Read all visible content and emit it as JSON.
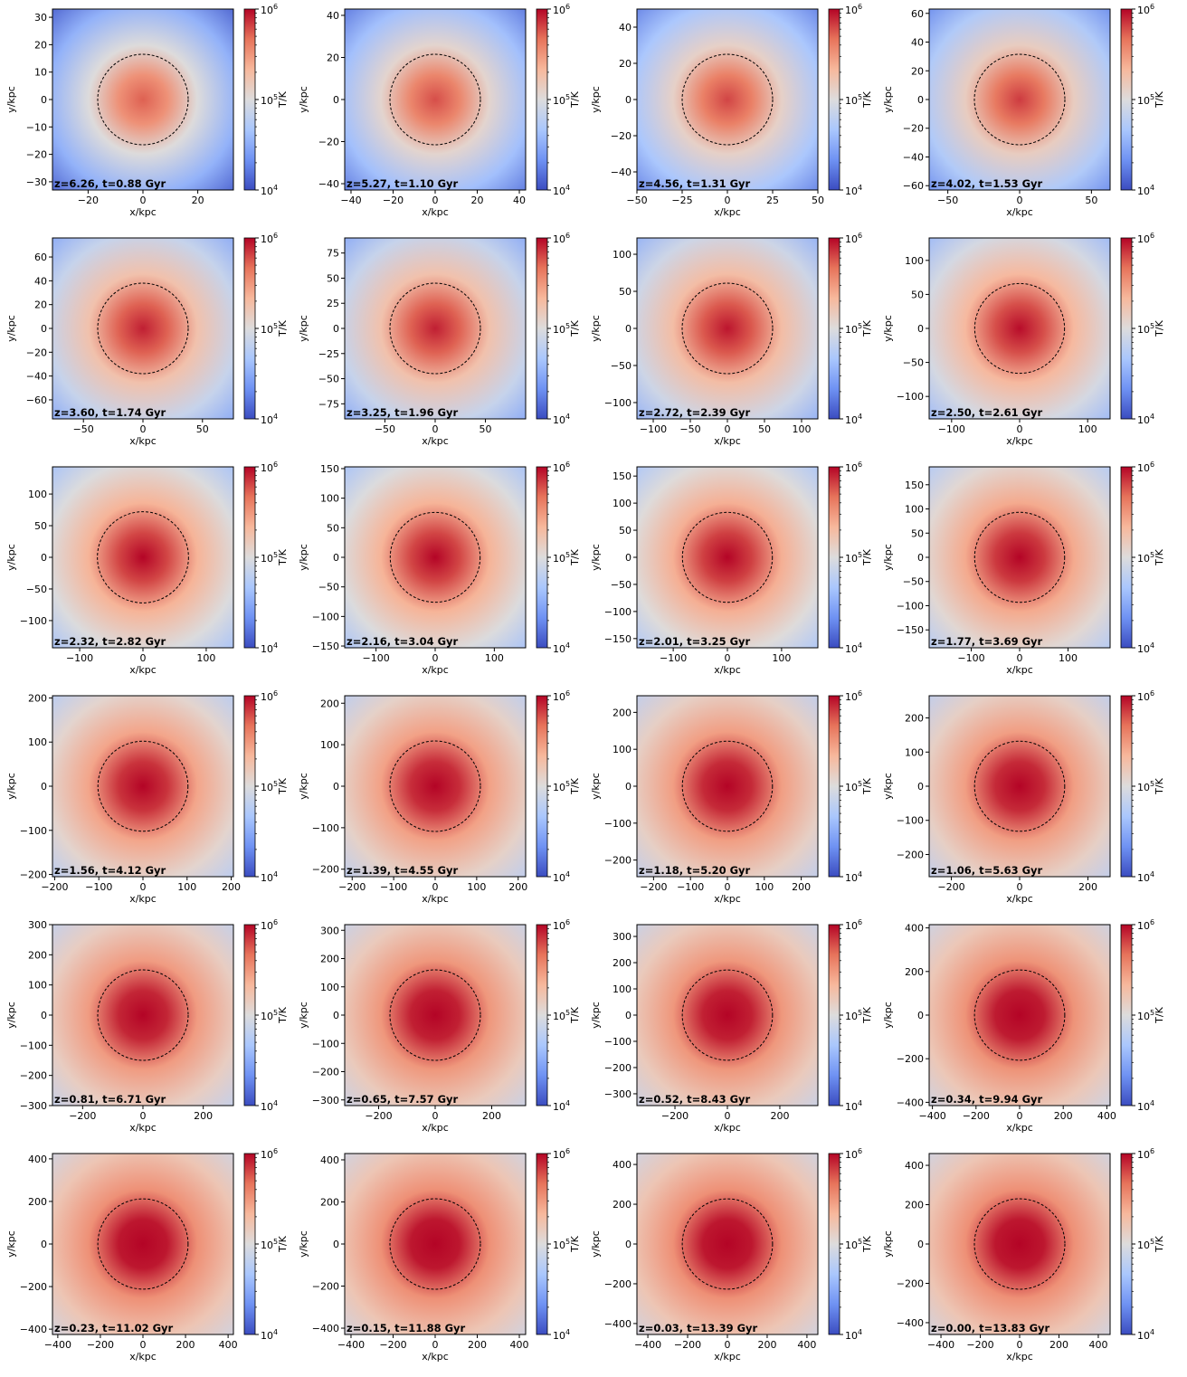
{
  "figure": {
    "rows": 6,
    "cols": 4,
    "colormap": "coolwarm",
    "colormap_stops": [
      "#3b4cc0",
      "#6f92f3",
      "#aac7fd",
      "#dddcdc",
      "#f7b89c",
      "#e7745b",
      "#b40426"
    ],
    "circle_style": "dashed-black"
  },
  "colorbar": {
    "label": "T/K",
    "ticks": [
      {
        "base": "10",
        "exp": "6"
      },
      {
        "base": "10",
        "exp": "5"
      },
      {
        "base": "10",
        "exp": "4"
      }
    ],
    "range": [
      10000,
      1000000
    ],
    "scale": "log"
  },
  "axes": {
    "xlabel": "x/kpc",
    "ylabel": "y/kpc"
  },
  "chart_data": [
    {
      "type": "heatmap",
      "annotation": "z=6.26, t=0.88 Gyr",
      "extent": [
        -33,
        33
      ],
      "xticks": [
        "-20",
        "0",
        "20"
      ],
      "xtick_values": [
        -20,
        0,
        20
      ],
      "yticks": [
        "30",
        "20",
        "10",
        "0",
        "-10",
        "-20",
        "-30"
      ],
      "ytick_values": [
        30,
        20,
        10,
        0,
        -10,
        -20,
        -30
      ],
      "circle_radius": 16.5,
      "warmth": 0.15
    },
    {
      "type": "heatmap",
      "annotation": "z=5.27, t=1.10 Gyr",
      "extent": [
        -43,
        43
      ],
      "xticks": [
        "-40",
        "-20",
        "0",
        "20",
        "40"
      ],
      "xtick_values": [
        -40,
        -20,
        0,
        20,
        40
      ],
      "yticks": [
        "40",
        "20",
        "0",
        "-20",
        "-40"
      ],
      "ytick_values": [
        40,
        20,
        0,
        -20,
        -40
      ],
      "circle_radius": 21.5,
      "warmth": 0.25
    },
    {
      "type": "heatmap",
      "annotation": "z=4.56, t=1.31 Gyr",
      "extent": [
        -50,
        50
      ],
      "xticks": [
        "-50",
        "-25",
        "0",
        "25",
        "50"
      ],
      "xtick_values": [
        -50,
        -25,
        0,
        25,
        50
      ],
      "yticks": [
        "40",
        "20",
        "0",
        "-20",
        "-40"
      ],
      "ytick_values": [
        40,
        20,
        0,
        -20,
        -40
      ],
      "circle_radius": 25,
      "warmth": 0.3
    },
    {
      "type": "heatmap",
      "annotation": "z=4.02, t=1.53 Gyr",
      "extent": [
        -63,
        63
      ],
      "xticks": [
        "-50",
        "0",
        "50"
      ],
      "xtick_values": [
        -50,
        0,
        50
      ],
      "yticks": [
        "60",
        "40",
        "20",
        "0",
        "-20",
        "-40",
        "-60"
      ],
      "ytick_values": [
        60,
        40,
        20,
        0,
        -20,
        -40,
        -60
      ],
      "circle_radius": 31.5,
      "warmth": 0.35
    },
    {
      "type": "heatmap",
      "annotation": "z=3.60, t=1.74 Gyr",
      "extent": [
        -76,
        76
      ],
      "xticks": [
        "-50",
        "0",
        "50"
      ],
      "xtick_values": [
        -50,
        0,
        50
      ],
      "yticks": [
        "60",
        "40",
        "20",
        "0",
        "-20",
        "-40",
        "-60"
      ],
      "ytick_values": [
        60,
        40,
        20,
        0,
        -20,
        -40,
        -60
      ],
      "circle_radius": 38,
      "warmth": 0.5
    },
    {
      "type": "heatmap",
      "annotation": "z=3.25, t=1.96 Gyr",
      "extent": [
        -90,
        90
      ],
      "xticks": [
        "-50",
        "0",
        "50"
      ],
      "xtick_values": [
        -50,
        0,
        50
      ],
      "yticks": [
        "75",
        "50",
        "25",
        "0",
        "-25",
        "-50",
        "-75"
      ],
      "ytick_values": [
        75,
        50,
        25,
        0,
        -25,
        -50,
        -75
      ],
      "circle_radius": 45,
      "warmth": 0.5
    },
    {
      "type": "heatmap",
      "annotation": "z=2.72, t=2.39 Gyr",
      "extent": [
        -122,
        122
      ],
      "xticks": [
        "-100",
        "-50",
        "0",
        "50",
        "100"
      ],
      "xtick_values": [
        -100,
        -50,
        0,
        50,
        100
      ],
      "yticks": [
        "100",
        "50",
        "0",
        "-50",
        "-100"
      ],
      "ytick_values": [
        100,
        50,
        0,
        -50,
        -100
      ],
      "circle_radius": 61,
      "warmth": 0.55
    },
    {
      "type": "heatmap",
      "annotation": "z=2.50, t=2.61 Gyr",
      "extent": [
        -133,
        133
      ],
      "xticks": [
        "-100",
        "0",
        "100"
      ],
      "xtick_values": [
        -100,
        0,
        100
      ],
      "yticks": [
        "100",
        "50",
        "0",
        "-50",
        "-100"
      ],
      "ytick_values": [
        100,
        50,
        0,
        -50,
        -100
      ],
      "circle_radius": 66,
      "warmth": 0.6
    },
    {
      "type": "heatmap",
      "annotation": "z=2.32, t=2.82 Gyr",
      "extent": [
        -143,
        143
      ],
      "xticks": [
        "-100",
        "0",
        "100"
      ],
      "xtick_values": [
        -100,
        0,
        100
      ],
      "yticks": [
        "100",
        "50",
        "0",
        "-50",
        "-100"
      ],
      "ytick_values": [
        100,
        50,
        0,
        -50,
        -100
      ],
      "circle_radius": 72,
      "warmth": 0.65
    },
    {
      "type": "heatmap",
      "annotation": "z=2.16, t=3.04 Gyr",
      "extent": [
        -153,
        153
      ],
      "xticks": [
        "-100",
        "0",
        "100"
      ],
      "xtick_values": [
        -100,
        0,
        100
      ],
      "yticks": [
        "150",
        "100",
        "50",
        "0",
        "-50",
        "-100",
        "-150"
      ],
      "ytick_values": [
        150,
        100,
        50,
        0,
        -50,
        -100,
        -150
      ],
      "circle_radius": 76,
      "warmth": 0.65
    },
    {
      "type": "heatmap",
      "annotation": "z=2.01, t=3.25 Gyr",
      "extent": [
        -167,
        167
      ],
      "xticks": [
        "-100",
        "0",
        "100"
      ],
      "xtick_values": [
        -100,
        0,
        100
      ],
      "yticks": [
        "150",
        "100",
        "50",
        "0",
        "-50",
        "-100",
        "-150"
      ],
      "ytick_values": [
        150,
        100,
        50,
        0,
        -50,
        -100,
        -150
      ],
      "circle_radius": 83,
      "warmth": 0.68
    },
    {
      "type": "heatmap",
      "annotation": "z=1.77, t=3.69 Gyr",
      "extent": [
        -187,
        187
      ],
      "xticks": [
        "-100",
        "0",
        "100"
      ],
      "xtick_values": [
        -100,
        0,
        100
      ],
      "yticks": [
        "150",
        "100",
        "50",
        "0",
        "-50",
        "-100",
        "-150"
      ],
      "ytick_values": [
        150,
        100,
        50,
        0,
        -50,
        -100,
        -150
      ],
      "circle_radius": 93,
      "warmth": 0.72
    },
    {
      "type": "heatmap",
      "annotation": "z=1.56, t=4.12 Gyr",
      "extent": [
        -205,
        205
      ],
      "xticks": [
        "-200",
        "-100",
        "0",
        "100",
        "200"
      ],
      "xtick_values": [
        -200,
        -100,
        0,
        100,
        200
      ],
      "yticks": [
        "200",
        "100",
        "0",
        "-100",
        "-200"
      ],
      "ytick_values": [
        200,
        100,
        0,
        -100,
        -200
      ],
      "circle_radius": 102,
      "warmth": 0.75
    },
    {
      "type": "heatmap",
      "annotation": "z=1.39, t=4.55 Gyr",
      "extent": [
        -218,
        218
      ],
      "xticks": [
        "-200",
        "-100",
        "0",
        "100",
        "200"
      ],
      "xtick_values": [
        -200,
        -100,
        0,
        100,
        200
      ],
      "yticks": [
        "200",
        "100",
        "0",
        "-100",
        "-200"
      ],
      "ytick_values": [
        200,
        100,
        0,
        -100,
        -200
      ],
      "circle_radius": 109,
      "warmth": 0.78
    },
    {
      "type": "heatmap",
      "annotation": "z=1.18, t=5.20 Gyr",
      "extent": [
        -245,
        245
      ],
      "xticks": [
        "-200",
        "-100",
        "0",
        "100",
        "200"
      ],
      "xtick_values": [
        -200,
        -100,
        0,
        100,
        200
      ],
      "yticks": [
        "200",
        "100",
        "0",
        "-100",
        "-200"
      ],
      "ytick_values": [
        200,
        100,
        0,
        -100,
        -200
      ],
      "circle_radius": 122,
      "warmth": 0.8
    },
    {
      "type": "heatmap",
      "annotation": "z=1.06, t=5.63 Gyr",
      "extent": [
        -265,
        265
      ],
      "xticks": [
        "-200",
        "0",
        "200"
      ],
      "xtick_values": [
        -200,
        0,
        200
      ],
      "yticks": [
        "200",
        "100",
        "0",
        "-100",
        "-200"
      ],
      "ytick_values": [
        200,
        100,
        0,
        -100,
        -200
      ],
      "circle_radius": 132,
      "warmth": 0.8
    },
    {
      "type": "heatmap",
      "annotation": "z=0.81, t=6.71 Gyr",
      "extent": [
        -300,
        300
      ],
      "xticks": [
        "-200",
        "0",
        "200"
      ],
      "xtick_values": [
        -200,
        0,
        200
      ],
      "yticks": [
        "300",
        "200",
        "100",
        "0",
        "-100",
        "-200",
        "-300"
      ],
      "ytick_values": [
        300,
        200,
        100,
        0,
        -100,
        -200,
        -300
      ],
      "circle_radius": 150,
      "warmth": 0.82
    },
    {
      "type": "heatmap",
      "annotation": "z=0.65, t=7.57 Gyr",
      "extent": [
        -320,
        320
      ],
      "xticks": [
        "-200",
        "0",
        "200"
      ],
      "xtick_values": [
        -200,
        0,
        200
      ],
      "yticks": [
        "300",
        "200",
        "100",
        "0",
        "-100",
        "-200",
        "-300"
      ],
      "ytick_values": [
        300,
        200,
        100,
        0,
        -100,
        -200,
        -300
      ],
      "circle_radius": 160,
      "warmth": 0.85
    },
    {
      "type": "heatmap",
      "annotation": "z=0.52, t=8.43 Gyr",
      "extent": [
        -345,
        345
      ],
      "xticks": [
        "-200",
        "0",
        "200"
      ],
      "xtick_values": [
        -200,
        0,
        200
      ],
      "yticks": [
        "300",
        "200",
        "100",
        "0",
        "-100",
        "-200",
        "-300"
      ],
      "ytick_values": [
        300,
        200,
        100,
        0,
        -100,
        -200,
        -300
      ],
      "circle_radius": 172,
      "warmth": 0.85
    },
    {
      "type": "heatmap",
      "annotation": "z=0.34, t=9.94 Gyr",
      "extent": [
        -415,
        415
      ],
      "xticks": [
        "-400",
        "-200",
        "0",
        "200",
        "400"
      ],
      "xtick_values": [
        -400,
        -200,
        0,
        200,
        400
      ],
      "yticks": [
        "400",
        "200",
        "0",
        "-200",
        "-400"
      ],
      "ytick_values": [
        400,
        200,
        0,
        -200,
        -400
      ],
      "circle_radius": 207,
      "warmth": 0.88
    },
    {
      "type": "heatmap",
      "annotation": "z=0.23, t=11.02 Gyr",
      "extent": [
        -425,
        425
      ],
      "xticks": [
        "-400",
        "-200",
        "0",
        "200",
        "400"
      ],
      "xtick_values": [
        -400,
        -200,
        0,
        200,
        400
      ],
      "yticks": [
        "400",
        "200",
        "0",
        "-200",
        "-400"
      ],
      "ytick_values": [
        400,
        200,
        0,
        -200,
        -400
      ],
      "circle_radius": 212,
      "warmth": 0.9
    },
    {
      "type": "heatmap",
      "annotation": "z=0.15, t=11.88 Gyr",
      "extent": [
        -430,
        430
      ],
      "xticks": [
        "-400",
        "-200",
        "0",
        "200",
        "400"
      ],
      "xtick_values": [
        -400,
        -200,
        0,
        200,
        400
      ],
      "yticks": [
        "400",
        "200",
        "0",
        "-200",
        "-400"
      ],
      "ytick_values": [
        400,
        200,
        0,
        -200,
        -400
      ],
      "circle_radius": 215,
      "warmth": 0.9
    },
    {
      "type": "heatmap",
      "annotation": "z=0.03, t=13.39 Gyr",
      "extent": [
        -455,
        455
      ],
      "xticks": [
        "-400",
        "-200",
        "0",
        "200",
        "400"
      ],
      "xtick_values": [
        -400,
        -200,
        0,
        200,
        400
      ],
      "yticks": [
        "400",
        "200",
        "0",
        "-200",
        "-400"
      ],
      "ytick_values": [
        400,
        200,
        0,
        -200,
        -400
      ],
      "circle_radius": 227,
      "warmth": 0.9
    },
    {
      "type": "heatmap",
      "annotation": "z=0.00, t=13.83 Gyr",
      "extent": [
        -460,
        460
      ],
      "xticks": [
        "-400",
        "-200",
        "0",
        "200",
        "400"
      ],
      "xtick_values": [
        -400,
        -200,
        0,
        200,
        400
      ],
      "yticks": [
        "400",
        "200",
        "0",
        "-200",
        "-400"
      ],
      "ytick_values": [
        400,
        200,
        0,
        -200,
        -400
      ],
      "circle_radius": 230,
      "warmth": 0.9
    }
  ]
}
